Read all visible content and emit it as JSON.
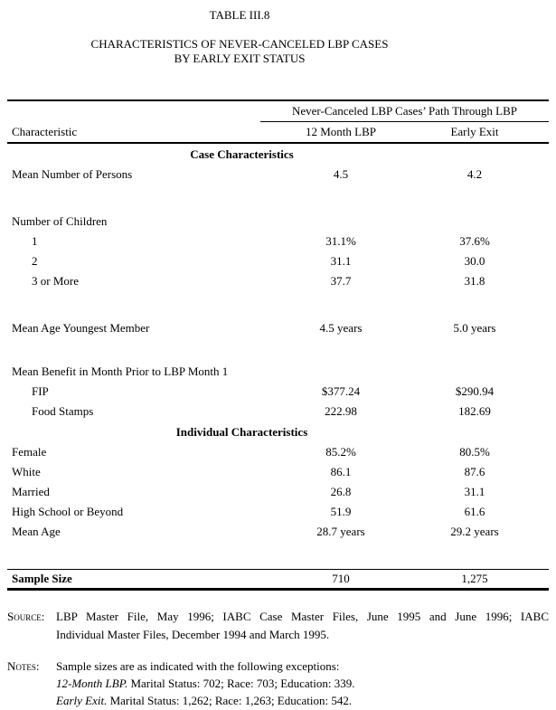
{
  "page": {
    "title_number": "TABLE III.8",
    "title_line1": "CHARACTERISTICS OF NEVER-CANCELED LBP CASES",
    "title_line2": "BY EARLY EXIT STATUS"
  },
  "table": {
    "spanner_heading": "Never-Canceled LBP Cases’ Path Through LBP",
    "col_characteristic": "Characteristic",
    "col_12month": "12 Month LBP",
    "col_early_exit": "Early Exit",
    "section1_heading": "Case Characteristics",
    "section2_heading": "Individual Characteristics",
    "rows_case": [
      {
        "label": "Mean Number of Persons",
        "v1": "4.5",
        "v2": "4.2"
      },
      {
        "label": "Number of Children",
        "v1": "",
        "v2": ""
      },
      {
        "label": "1",
        "v1": "31.1%",
        "v2": "37.6%"
      },
      {
        "label": "2",
        "v1": "31.1",
        "v2": "30.0"
      },
      {
        "label": "3 or More",
        "v1": "37.7",
        "v2": "31.8"
      },
      {
        "label": "Mean Age Youngest Member",
        "v1": "4.5 years",
        "v2": "5.0 years"
      },
      {
        "label": "Mean Benefit in Month Prior to LBP Month 1",
        "v1": "",
        "v2": ""
      },
      {
        "label": "FIP",
        "v1": "$377.24",
        "v2": "$290.94"
      },
      {
        "label": "Food Stamps",
        "v1": "222.98",
        "v2": "182.69"
      }
    ],
    "rows_individual": [
      {
        "label": "Female",
        "v1": "85.2%",
        "v2": "80.5%"
      },
      {
        "label": "White",
        "v1": "86.1",
        "v2": "87.6"
      },
      {
        "label": "Married",
        "v1": "26.8",
        "v2": "31.1"
      },
      {
        "label": "High School or Beyond",
        "v1": "51.9",
        "v2": "61.6"
      },
      {
        "label": "Mean Age",
        "v1": "28.7 years",
        "v2": "29.2 years"
      }
    ],
    "sample_size": {
      "label": "Sample Size",
      "v1": "710",
      "v2": "1,275"
    }
  },
  "footnotes": {
    "source_label": "Source:",
    "source_line1": "LBP Master File, May 1996; IABC Case Master Files, June 1995 and June 1996; IABC",
    "source_line2": "Individual Master Files, December 1994 and March 1995.",
    "notes_label": "Notes:",
    "notes_intro": "Sample sizes are as indicated with the following exceptions:",
    "note1_em": "12-Month LBP.",
    "note1_rest": " Marital Status: 702; Race: 703; Education: 339.",
    "note2_em": "Early Exit.",
    "note2_rest": " Marital Status: 1,262; Race: 1,263; Education: 542."
  }
}
